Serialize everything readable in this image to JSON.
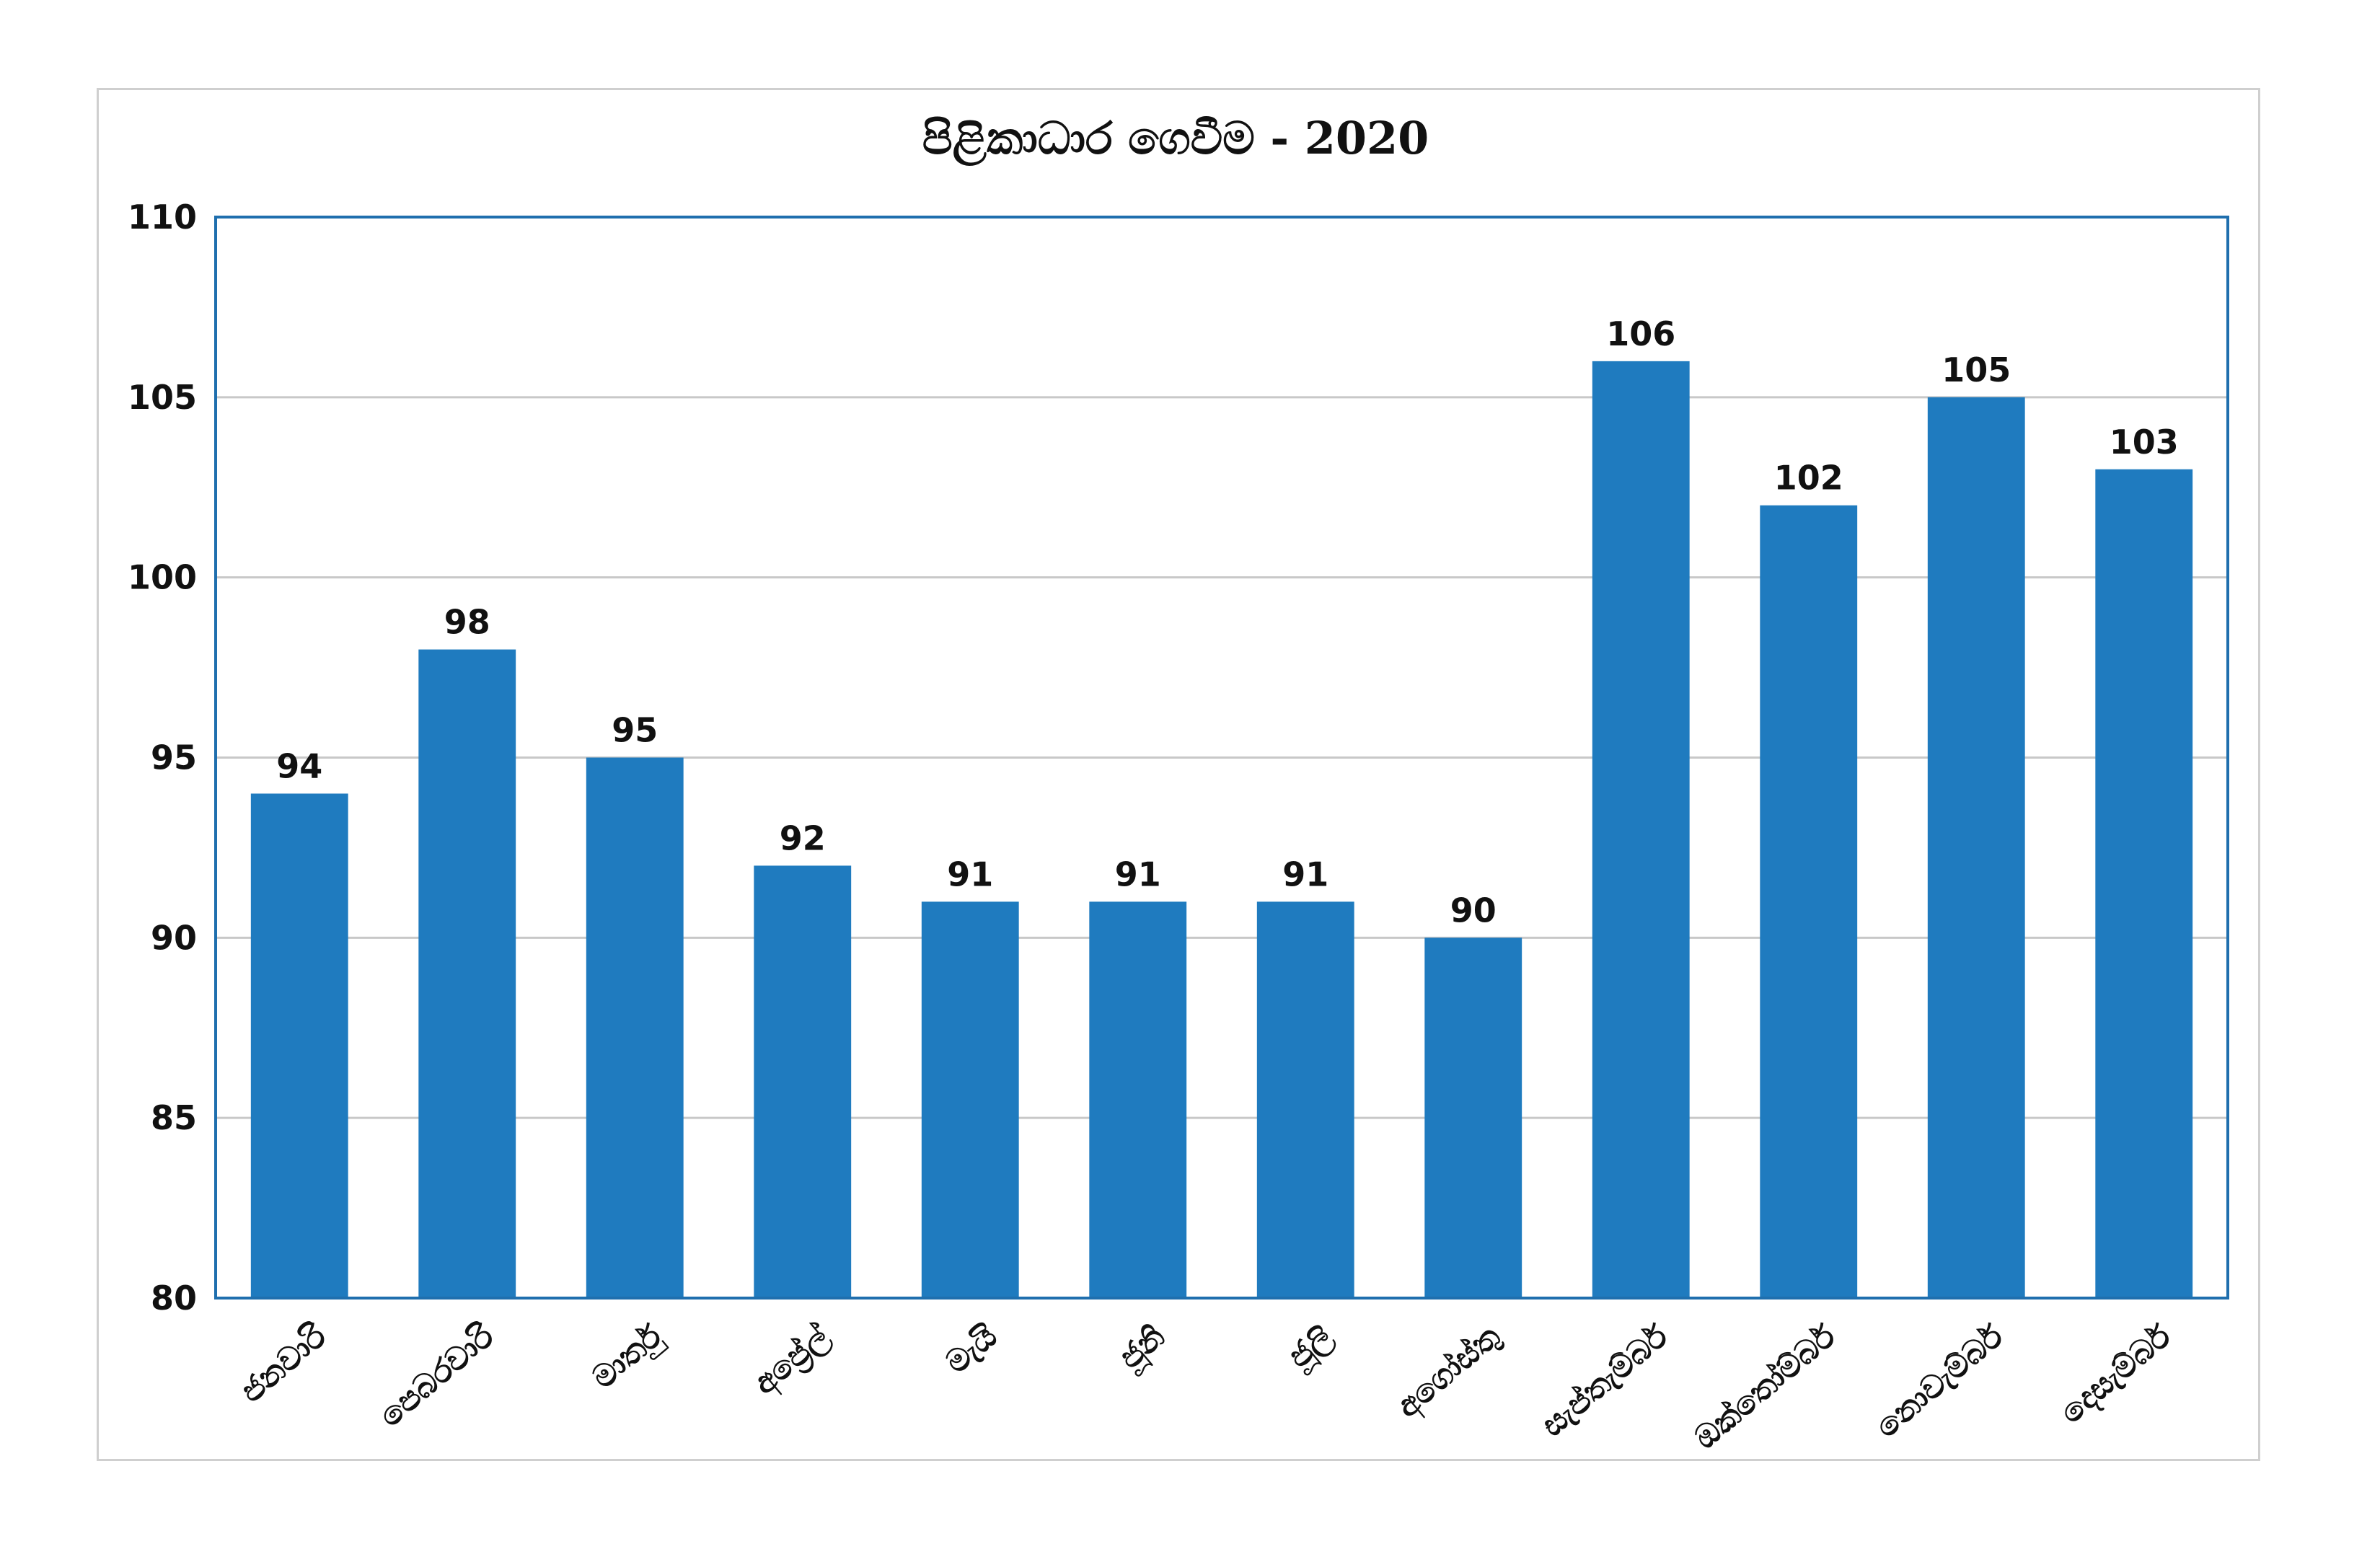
{
  "chart_data": {
    "type": "bar",
    "title": "පිළිකාධාර ගෙවීම - 2020",
    "xlabel": "",
    "ylabel": "",
    "categories": [
      "ජනවාරි",
      "පෙබරවාරි",
      "මාර්තු",
      "අප්‍රේල්",
      "මැයි",
      "ජූනි",
      "ජූලි",
      "අගෝස්තු",
      "සැප්තැම්බර්",
      "ඔක්තෝම්බර්",
      "නොවැම්බර්",
      "දෙසැම්බර්"
    ],
    "values": [
      94,
      98,
      95,
      92,
      91,
      91,
      91,
      90,
      106,
      102,
      105,
      103
    ],
    "ylim": [
      80,
      110
    ],
    "yticks": [
      "80",
      "85",
      "90",
      "95",
      "100",
      "105",
      "110"
    ],
    "data_labels": [
      "94",
      "98",
      "95",
      "92",
      "91",
      "91",
      "91",
      "90",
      "106",
      "102",
      "105",
      "103"
    ],
    "grid": true,
    "legend": "none",
    "colors": {
      "bar": "#1f7bbf",
      "plot_border": "#1f6fae",
      "grid": "#c8c8c8"
    }
  }
}
